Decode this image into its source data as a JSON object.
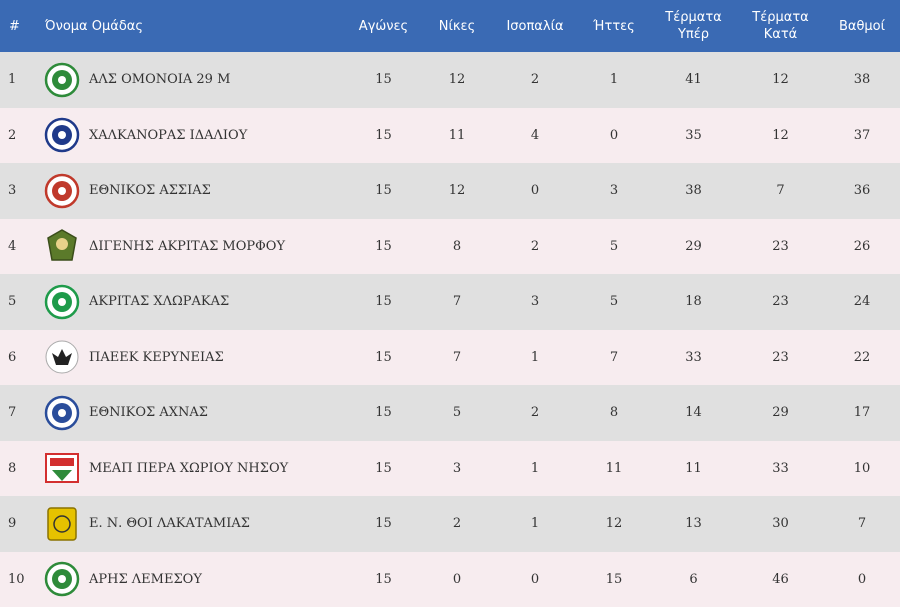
{
  "headers": {
    "num": "#",
    "team": "Όνομα Ομάδας",
    "played": "Αγώνες",
    "wins": "Νίκες",
    "draws": "Ισοπαλία",
    "losses": "Ήττες",
    "gf_1": "Τέρματα",
    "gf_2": "Υπέρ",
    "ga_1": "Τέρματα",
    "ga_2": "Κατά",
    "points": "Βαθμοί"
  },
  "rows": [
    {
      "pos": "1",
      "team": "ΑΛΣ ΟΜΟΝΟΙΑ 29 Μ",
      "played": "15",
      "wins": "12",
      "draws": "2",
      "losses": "1",
      "gf": "41",
      "ga": "12",
      "points": "38",
      "logo": "omonoia-crest-icon",
      "color": "#2e8b3a"
    },
    {
      "pos": "2",
      "team": "ΧΑΛΚΑΝΟΡΑΣ ΙΔΑΛΙΟΥ",
      "played": "15",
      "wins": "11",
      "draws": "4",
      "losses": "0",
      "gf": "35",
      "ga": "12",
      "points": "37",
      "logo": "chalkanoras-crest-icon",
      "color": "#1f3a8a"
    },
    {
      "pos": "3",
      "team": "ΕΘΝΙΚΟΣ ΑΣΣΙΑΣ",
      "played": "15",
      "wins": "12",
      "draws": "0",
      "losses": "3",
      "gf": "38",
      "ga": "7",
      "points": "36",
      "logo": "ethnikos-assias-crest-icon",
      "color": "#c0392b"
    },
    {
      "pos": "4",
      "team": "ΔΙΓΕΝΗΣ ΑΚΡΙΤΑΣ ΜΟΡΦΟΥ",
      "played": "15",
      "wins": "8",
      "draws": "2",
      "losses": "5",
      "gf": "29",
      "ga": "23",
      "points": "26",
      "logo": "digenis-crest-icon",
      "color": "#5b7a2a"
    },
    {
      "pos": "5",
      "team": "ΑΚΡΙΤΑΣ ΧΛΩΡΑΚΑΣ",
      "played": "15",
      "wins": "7",
      "draws": "3",
      "losses": "5",
      "gf": "18",
      "ga": "23",
      "points": "24",
      "logo": "akritas-crest-icon",
      "color": "#1e9b4a"
    },
    {
      "pos": "6",
      "team": "ΠΑΕΕΚ ΚΕΡΥΝΕΙΑΣ",
      "played": "15",
      "wins": "7",
      "draws": "1",
      "losses": "7",
      "gf": "33",
      "ga": "23",
      "points": "22",
      "logo": "paeek-crest-icon",
      "color": "#222222"
    },
    {
      "pos": "7",
      "team": "ΕΘΝΙΚΟΣ ΑΧΝΑΣ",
      "played": "15",
      "wins": "5",
      "draws": "2",
      "losses": "8",
      "gf": "14",
      "ga": "29",
      "points": "17",
      "logo": "ethnikos-achnas-crest-icon",
      "color": "#2a4d9b"
    },
    {
      "pos": "8",
      "team": "ΜΕΑΠ ΠΕΡΑ ΧΩΡΙΟΥ ΝΗΣΟΥ",
      "played": "15",
      "wins": "3",
      "draws": "1",
      "losses": "11",
      "gf": "11",
      "ga": "33",
      "points": "10",
      "logo": "meap-crest-icon",
      "color": "#d32f2f"
    },
    {
      "pos": "9",
      "team": "Ε. Ν. ΘΟΙ ΛΑΚΑΤΑΜΙΑΣ",
      "played": "15",
      "wins": "2",
      "draws": "1",
      "losses": "12",
      "gf": "13",
      "ga": "30",
      "points": "7",
      "logo": "thoi-crest-icon",
      "color": "#e6c200"
    },
    {
      "pos": "10",
      "team": "ΑΡΗΣ ΛΕΜΕΣΟΥ",
      "played": "15",
      "wins": "0",
      "draws": "0",
      "losses": "15",
      "gf": "6",
      "ga": "46",
      "points": "0",
      "logo": "aris-crest-icon",
      "color": "#2e8b3a"
    }
  ]
}
